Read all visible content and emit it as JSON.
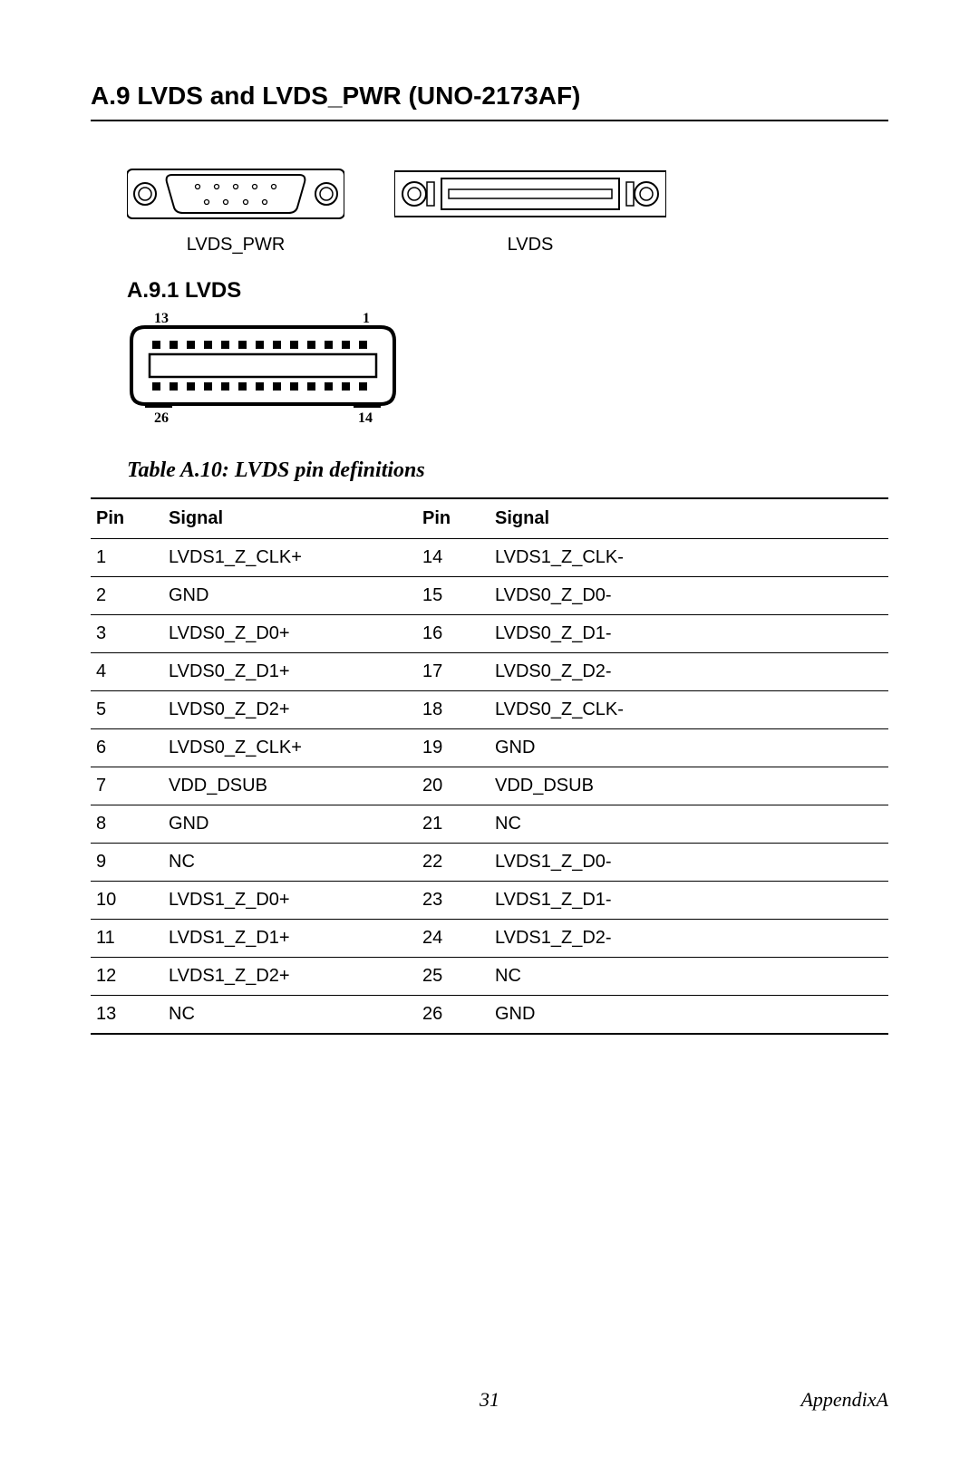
{
  "heading": "A.9  LVDS and LVDS_PWR (UNO-2173AF)",
  "connectors": {
    "left_label": "LVDS_PWR",
    "right_label": "LVDS"
  },
  "subheading": "A.9.1 LVDS",
  "diagram_labels": {
    "tl": "13",
    "tr": "1",
    "bl": "26",
    "br": "14"
  },
  "table_title": "Table A.10: LVDS pin definitions",
  "table_heads": {
    "pin": "Pin",
    "signal": "Signal",
    "pin2": "Pin",
    "signal2": "Signal"
  },
  "rows": [
    {
      "p1": "1",
      "s1": "LVDS1_Z_CLK+",
      "p2": "14",
      "s2": "LVDS1_Z_CLK-"
    },
    {
      "p1": "2",
      "s1": "GND",
      "p2": "15",
      "s2": "LVDS0_Z_D0-"
    },
    {
      "p1": "3",
      "s1": "LVDS0_Z_D0+",
      "p2": "16",
      "s2": "LVDS0_Z_D1-"
    },
    {
      "p1": "4",
      "s1": "LVDS0_Z_D1+",
      "p2": "17",
      "s2": "LVDS0_Z_D2-"
    },
    {
      "p1": "5",
      "s1": "LVDS0_Z_D2+",
      "p2": "18",
      "s2": "LVDS0_Z_CLK-"
    },
    {
      "p1": "6",
      "s1": "LVDS0_Z_CLK+",
      "p2": "19",
      "s2": "GND"
    },
    {
      "p1": "7",
      "s1": "VDD_DSUB",
      "p2": "20",
      "s2": "VDD_DSUB"
    },
    {
      "p1": "8",
      "s1": "GND",
      "p2": "21",
      "s2": "NC"
    },
    {
      "p1": "9",
      "s1": "NC",
      "p2": "22",
      "s2": "LVDS1_Z_D0-"
    },
    {
      "p1": "10",
      "s1": "LVDS1_Z_D0+",
      "p2": "23",
      "s2": "LVDS1_Z_D1-"
    },
    {
      "p1": "11",
      "s1": "LVDS1_Z_D1+",
      "p2": "24",
      "s2": "LVDS1_Z_D2-"
    },
    {
      "p1": "12",
      "s1": "LVDS1_Z_D2+",
      "p2": "25",
      "s2": "NC"
    },
    {
      "p1": "13",
      "s1": "NC",
      "p2": "26",
      "s2": "GND"
    }
  ],
  "footer": {
    "page": "31",
    "appendix": "AppendixA"
  }
}
